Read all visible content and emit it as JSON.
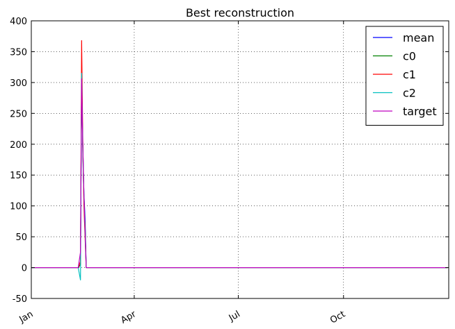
{
  "chart_data": {
    "type": "line",
    "title": "Best reconstruction",
    "xlabel": "",
    "ylabel": "",
    "x_axis": {
      "kind": "date",
      "range": [
        "Jan",
        "Dec"
      ],
      "ticks": [
        "Jan",
        "Apr",
        "Jul",
        "Oct"
      ],
      "tick_rotation_deg": -30
    },
    "ylim": [
      -50,
      400
    ],
    "yticks": [
      -50,
      0,
      50,
      100,
      150,
      200,
      250,
      300,
      350,
      400
    ],
    "grid": true,
    "legend_position": "top-right",
    "series": [
      {
        "name": "mean",
        "color": "#0000ff",
        "x": [
          "Jan 1",
          "Feb 11",
          "Feb 13",
          "Feb 14",
          "Feb 15",
          "Feb 16",
          "Feb 17",
          "Feb 18",
          "Dec 31"
        ],
        "y": [
          0,
          0,
          5,
          305,
          200,
          120,
          80,
          0,
          0
        ]
      },
      {
        "name": "c0",
        "color": "#008000",
        "x": [
          "Jan 1",
          "Feb 11",
          "Feb 13",
          "Feb 14",
          "Feb 15",
          "Feb 16",
          "Feb 17",
          "Feb 18",
          "Dec 31"
        ],
        "y": [
          0,
          0,
          5,
          310,
          190,
          110,
          70,
          0,
          0
        ]
      },
      {
        "name": "c1",
        "color": "#ff0000",
        "x": [
          "Jan 1",
          "Feb 11",
          "Feb 13",
          "Feb 14",
          "Feb 15",
          "Feb 16",
          "Feb 17",
          "Feb 18",
          "Dec 31"
        ],
        "y": [
          0,
          0,
          10,
          368,
          210,
          100,
          50,
          0,
          0
        ]
      },
      {
        "name": "c2",
        "color": "#00bfbf",
        "x": [
          "Jan 1",
          "Feb 11",
          "Feb 13",
          "Feb 14",
          "Feb 15",
          "Feb 16",
          "Feb 17",
          "Feb 18",
          "Dec 31"
        ],
        "y": [
          0,
          0,
          -20,
          315,
          200,
          120,
          60,
          0,
          0
        ]
      },
      {
        "name": "target",
        "color": "#bf00bf",
        "x": [
          "Jan 1",
          "Feb 11",
          "Feb 13",
          "Feb 14",
          "Feb 15",
          "Feb 16",
          "Feb 17",
          "Feb 18",
          "Dec 31"
        ],
        "y": [
          0,
          0,
          25,
          306,
          200,
          120,
          60,
          0,
          0
        ]
      }
    ]
  }
}
